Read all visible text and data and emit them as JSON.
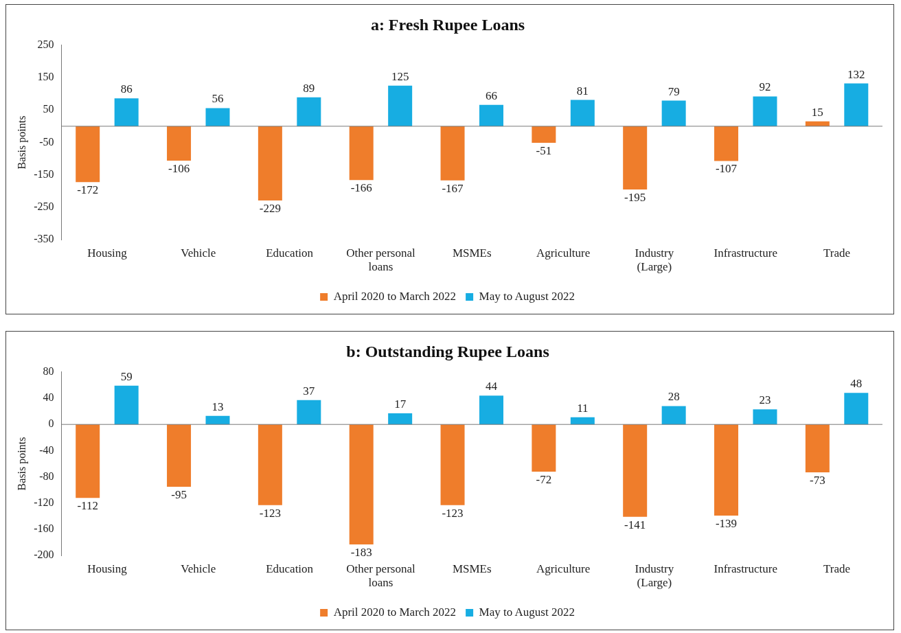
{
  "chart_data": [
    {
      "type": "bar",
      "title": "a: Fresh Rupee Loans",
      "ylabel": "Basis points",
      "categories": [
        "Housing",
        "Vehicle",
        "Education",
        "Other personal loans",
        "MSMEs",
        "Agriculture",
        "Industry (Large)",
        "Infrastructure",
        "Trade"
      ],
      "series": [
        {
          "name": "April 2020 to March 2022",
          "color": "#ef7d2b",
          "values": [
            -172,
            -106,
            -229,
            -166,
            -167,
            -51,
            -195,
            -107,
            15
          ]
        },
        {
          "name": "May to August 2022",
          "color": "#17ade2",
          "values": [
            86,
            56,
            89,
            125,
            66,
            81,
            79,
            92,
            132
          ]
        }
      ],
      "ylim": [
        -350,
        250
      ],
      "yticks": [
        -350,
        -250,
        -150,
        -50,
        50,
        150,
        250
      ],
      "ref_lines": [
        {
          "axis": "y",
          "value": 0,
          "color": "#777777"
        }
      ],
      "data_labels": true,
      "legend": "bottom",
      "grid": false
    },
    {
      "type": "bar",
      "title": "b: Outstanding Rupee Loans",
      "ylabel": "Basis points",
      "categories": [
        "Housing",
        "Vehicle",
        "Education",
        "Other personal loans",
        "MSMEs",
        "Agriculture",
        "Industry (Large)",
        "Infrastructure",
        "Trade"
      ],
      "series": [
        {
          "name": "April 2020 to March 2022",
          "color": "#ef7d2b",
          "values": [
            -112,
            -95,
            -123,
            -183,
            -123,
            -72,
            -141,
            -139,
            -73
          ]
        },
        {
          "name": "May to August 2022",
          "color": "#17ade2",
          "values": [
            59,
            13,
            37,
            17,
            44,
            11,
            28,
            23,
            48
          ]
        }
      ],
      "ylim": [
        -200,
        80
      ],
      "yticks": [
        -200,
        -160,
        -120,
        -80,
        -40,
        0,
        40,
        80
      ],
      "ref_lines": [
        {
          "axis": "y",
          "value": 0,
          "color": "#777777"
        }
      ],
      "data_labels": true,
      "legend": "bottom",
      "grid": false
    }
  ]
}
